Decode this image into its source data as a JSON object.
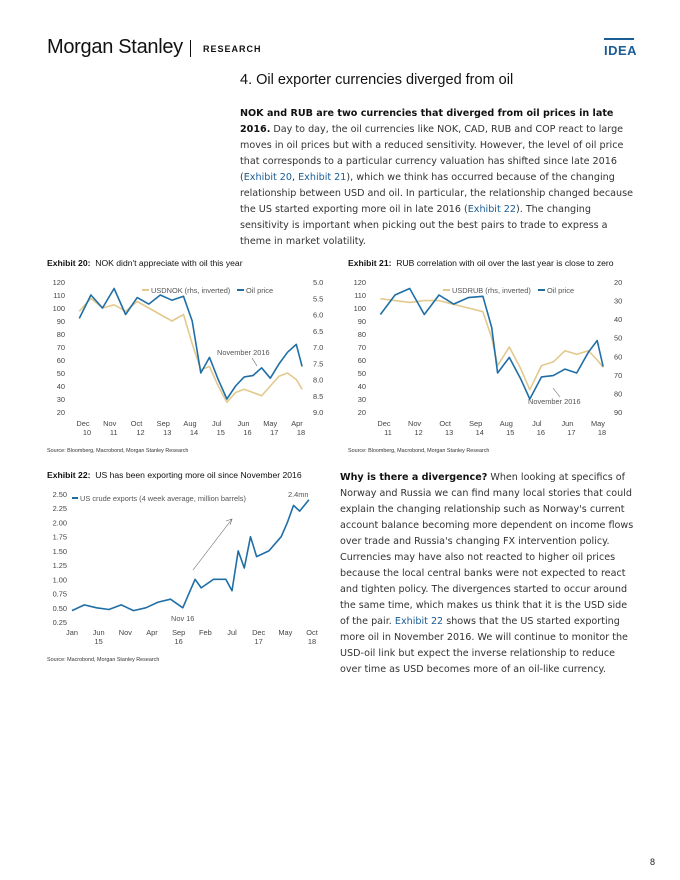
{
  "header": {
    "brand": "Morgan Stanley",
    "section": "RESEARCH",
    "tag": "IDEA"
  },
  "heading": "4. Oil exporter currencies diverged from oil",
  "intro": {
    "bold": "NOK and RUB are two currencies that diverged from oil prices in late 2016.",
    "t1": " Day to day, the oil currencies like NOK, CAD, RUB and COP react to large moves in oil prices but with a reduced sensitivity. However, the level of oil price that corresponds to a particular currency valuation has shifted since late 2016 (",
    "l1": "Exhibit 20",
    "t2": ", ",
    "l2": "Exhibit 21",
    "t3": "), which we think has occurred because of the changing relationship between USD and oil. In particular, the relationship changed because the US started exporting more oil in late 2016 (",
    "l3": "Exhibit 22",
    "t4": "). The changing sensitivity is important when picking out the best pairs to trade to express a theme in market volatility."
  },
  "divergence": {
    "bold": "Why is there a divergence?",
    "t1": " When looking at specifics of Norway and Russia we can find many local stories that could explain the changing relationship such as Norway's current account balance becoming more dependent on income flows over trade and Russia's changing FX intervention policy. Currencies may have also not reacted to higher oil prices because the local central banks were not expected to react and tighten policy. The divergences started to occur around the same time, which makes us think that it is the USD side of the pair. ",
    "l1": "Exhibit 22",
    "t2": " shows that the US started exporting more oil in November 2016. We will continue to monitor the USD-oil link but expect the inverse relationship to reduce over time as USD becomes more of an oil-like currency."
  },
  "exhibits": {
    "e20": {
      "label": "Exhibit 20:",
      "title": "NOK didn't appreciate with oil this year",
      "source": "Source: Bloomberg, Macrobond, Morgan Stanley Research"
    },
    "e21": {
      "label": "Exhibit 21:",
      "title": "RUB correlation with oil over the last year is close to zero",
      "source": "Source: Bloomberg, Macrobond, Morgan Stanley Research"
    },
    "e22": {
      "label": "Exhibit 22:",
      "title": "US has been exporting more oil since November 2016",
      "source": "Source: Macrobond, Morgan Stanley Research"
    }
  },
  "colors": {
    "fx": "#e3c98d",
    "oil": "#1f6fa6",
    "accent": "#1a5c94"
  },
  "page_number": "8",
  "chart_data": [
    {
      "type": "line",
      "id": "exhibit-20",
      "left_ticks": [
        "120",
        "110",
        "100",
        "90",
        "80",
        "70",
        "60",
        "50",
        "40",
        "30",
        "20"
      ],
      "right_ticks": [
        "5.0",
        "5.5",
        "6.0",
        "6.5",
        "7.0",
        "7.5",
        "8.0",
        "8.5",
        "9.0"
      ],
      "x_months": [
        "Dec",
        "Nov",
        "Oct",
        "Sep",
        "Aug",
        "Jul",
        "Jun",
        "May",
        "Apr"
      ],
      "x_years": [
        "10",
        "11",
        "12",
        "13",
        "14",
        "15",
        "16",
        "17",
        "18"
      ],
      "annotation": "November 2016",
      "series": [
        {
          "name": "USDNOK (rhs, inverted)",
          "axis": "right",
          "inverted": true,
          "x": [
            2010.9,
            2011.3,
            2011.7,
            2012.1,
            2012.5,
            2012.9,
            2013.3,
            2013.7,
            2014.1,
            2014.5,
            2014.8,
            2015.1,
            2015.4,
            2015.7,
            2016.0,
            2016.3,
            2016.6,
            2016.9,
            2017.2,
            2017.5,
            2017.8,
            2018.1,
            2018.4,
            2018.6
          ],
          "values": [
            5.9,
            5.5,
            5.8,
            5.7,
            5.9,
            5.6,
            5.8,
            6.0,
            6.2,
            6.0,
            6.9,
            7.7,
            7.6,
            8.2,
            8.7,
            8.4,
            8.3,
            8.4,
            8.5,
            8.2,
            7.9,
            7.8,
            8.0,
            8.3
          ]
        },
        {
          "name": "Oil price",
          "axis": "left",
          "x": [
            2010.9,
            2011.3,
            2011.7,
            2012.1,
            2012.5,
            2012.9,
            2013.3,
            2013.7,
            2014.1,
            2014.5,
            2014.8,
            2015.1,
            2015.4,
            2015.7,
            2016.0,
            2016.3,
            2016.6,
            2016.9,
            2017.2,
            2017.5,
            2017.8,
            2018.1,
            2018.4,
            2018.6
          ],
          "values": [
            92,
            110,
            100,
            115,
            95,
            108,
            103,
            110,
            106,
            109,
            90,
            50,
            62,
            45,
            30,
            40,
            47,
            48,
            54,
            46,
            57,
            66,
            72,
            55
          ]
        }
      ]
    },
    {
      "type": "line",
      "id": "exhibit-21",
      "left_ticks": [
        "120",
        "110",
        "100",
        "90",
        "80",
        "70",
        "60",
        "50",
        "40",
        "30",
        "20"
      ],
      "right_ticks": [
        "20",
        "30",
        "40",
        "50",
        "60",
        "70",
        "80",
        "90"
      ],
      "x_months": [
        "Dec",
        "Nov",
        "Oct",
        "Sep",
        "Aug",
        "Jul",
        "Jun",
        "May"
      ],
      "x_years": [
        "11",
        "12",
        "13",
        "14",
        "15",
        "16",
        "17",
        "18"
      ],
      "annotation": "November 2016",
      "series": [
        {
          "name": "USDRUB (rhs, inverted)",
          "axis": "right",
          "inverted": true,
          "x": [
            2011.0,
            2011.5,
            2012.0,
            2012.5,
            2013.0,
            2013.5,
            2014.0,
            2014.5,
            2014.8,
            2015.0,
            2015.4,
            2015.8,
            2016.1,
            2016.5,
            2016.9,
            2017.3,
            2017.7,
            2018.1,
            2018.4,
            2018.6
          ],
          "values": [
            29,
            30,
            31,
            30,
            30,
            32,
            34,
            36,
            50,
            65,
            55,
            67,
            78,
            65,
            63,
            57,
            59,
            57,
            62,
            66
          ]
        },
        {
          "name": "Oil price",
          "axis": "left",
          "x": [
            2011.0,
            2011.5,
            2012.0,
            2012.5,
            2013.0,
            2013.5,
            2014.0,
            2014.5,
            2014.8,
            2015.0,
            2015.4,
            2015.8,
            2016.1,
            2016.5,
            2016.9,
            2017.3,
            2017.7,
            2018.1,
            2018.4,
            2018.6
          ],
          "values": [
            95,
            110,
            115,
            95,
            110,
            103,
            108,
            109,
            85,
            50,
            62,
            45,
            30,
            47,
            48,
            53,
            50,
            66,
            75,
            55
          ]
        }
      ]
    },
    {
      "type": "line",
      "id": "exhibit-22",
      "y_ticks": [
        "2.50",
        "2.25",
        "2.00",
        "1.75",
        "1.50",
        "1.25",
        "1.00",
        "0.75",
        "0.50",
        "0.25"
      ],
      "x_months": [
        "Jan",
        "Jun",
        "Nov",
        "Apr",
        "Sep",
        "Feb",
        "Jul",
        "Dec",
        "May",
        "Oct"
      ],
      "x_years": [
        "15",
        "16",
        "17",
        "18"
      ],
      "annotation": "Nov 16",
      "end_label": "2.4mn",
      "series": [
        {
          "name": "US crude exports (4 week average, million barrels)",
          "x": [
            2015.0,
            2015.2,
            2015.4,
            2015.6,
            2015.8,
            2016.0,
            2016.2,
            2016.4,
            2016.6,
            2016.8,
            2016.9,
            2017.0,
            2017.1,
            2017.3,
            2017.5,
            2017.6,
            2017.7,
            2017.8,
            2017.9,
            2018.0,
            2018.2,
            2018.4,
            2018.5,
            2018.6,
            2018.7,
            2018.85
          ],
          "values": [
            0.45,
            0.55,
            0.5,
            0.47,
            0.55,
            0.45,
            0.5,
            0.6,
            0.65,
            0.5,
            0.75,
            1.0,
            0.85,
            1.0,
            1.0,
            0.8,
            1.5,
            1.2,
            1.75,
            1.4,
            1.5,
            1.75,
            2.0,
            2.3,
            2.2,
            2.4
          ]
        }
      ]
    }
  ]
}
